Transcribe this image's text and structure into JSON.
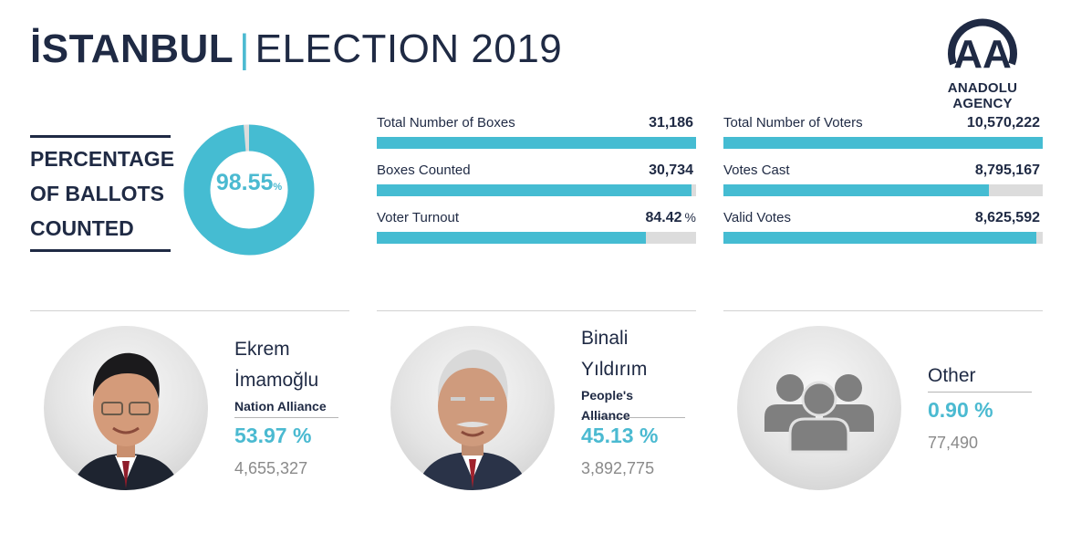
{
  "header": {
    "city": "İSTANBUL",
    "separator": "|",
    "subtitle": "ELECTION 2019",
    "logo_text": "ANADOLU AGENCY",
    "logo_letters": "AA"
  },
  "colors": {
    "accent": "#4bbad1",
    "bar_fill": "#45bcd2",
    "bar_track": "#dcdcdc",
    "navy": "#1f2a44",
    "grey_text": "#8a8a8a"
  },
  "ballots": {
    "label_lines": [
      "PERCENTAGE",
      "OF BALLOTS",
      "COUNTED"
    ],
    "value": "98.55",
    "unit": "%",
    "fraction": 0.9855
  },
  "stats_left": [
    {
      "label": "Total Number of Boxes",
      "value": "31,186",
      "unit": "",
      "fill": 1.0
    },
    {
      "label": "Boxes Counted",
      "value": "30,734",
      "unit": "",
      "fill": 0.9855
    },
    {
      "label": "Voter Turnout",
      "value": "84.42",
      "unit": "%",
      "fill": 0.8442
    }
  ],
  "stats_right": [
    {
      "label": "Total Number of Voters",
      "value": "10,570,222",
      "unit": "",
      "fill": 1.0
    },
    {
      "label": "Votes Cast",
      "value": "8,795,167",
      "unit": "",
      "fill": 0.8321
    },
    {
      "label": "Valid Votes",
      "value": "8,625,592",
      "unit": "",
      "fill": 0.9807
    }
  ],
  "candidates": [
    {
      "name_lines": [
        "Ekrem",
        "İmamoğlu"
      ],
      "alliance_lines": [
        "Nation Alliance"
      ],
      "percent": "53.97 %",
      "votes": "4,655,327"
    },
    {
      "name_lines": [
        "Binali",
        "Yıldırım"
      ],
      "alliance_lines": [
        "People's",
        "Alliance"
      ],
      "percent": "45.13 %",
      "votes": "3,892,775"
    },
    {
      "name_lines": [
        "Other"
      ],
      "alliance_lines": [],
      "percent": "0.90 %",
      "votes": "77,490"
    }
  ]
}
